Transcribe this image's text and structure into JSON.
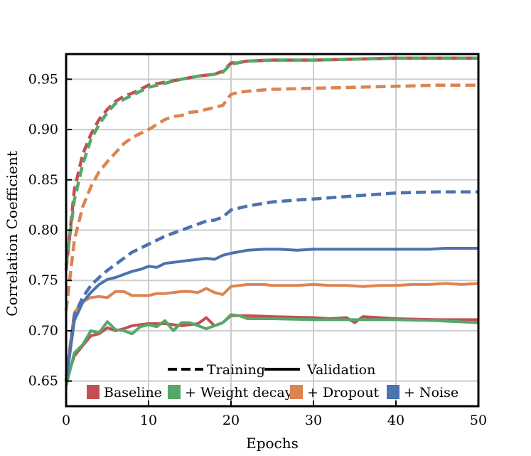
{
  "chart_data": {
    "type": "line",
    "title": "",
    "xlabel": "Epochs",
    "ylabel": "Correlation Coefficient",
    "xlim": [
      0,
      50
    ],
    "ylim": [
      0.625,
      0.975
    ],
    "xticks": [
      0,
      10,
      20,
      30,
      40,
      50
    ],
    "yticks": [
      0.65,
      0.7,
      0.75,
      0.8,
      0.85,
      0.9,
      0.95
    ],
    "ytick_labels": [
      "0.65",
      "0.70",
      "0.75",
      "0.80",
      "0.85",
      "0.90",
      "0.95"
    ],
    "grid": true,
    "style_legend": [
      {
        "label": "Training",
        "dash": "dashed"
      },
      {
        "label": "Validation",
        "dash": "solid"
      }
    ],
    "series": [
      {
        "name": "Baseline",
        "color": "#c44e52",
        "training": {
          "x": [
            0,
            1,
            2,
            3,
            4,
            5,
            6,
            7,
            8,
            9,
            10,
            12,
            14,
            16,
            18,
            19,
            20,
            22,
            25,
            30,
            35,
            40,
            45,
            50
          ],
          "y": [
            0.76,
            0.84,
            0.875,
            0.895,
            0.91,
            0.92,
            0.928,
            0.933,
            0.936,
            0.94,
            0.944,
            0.947,
            0.95,
            0.953,
            0.955,
            0.958,
            0.966,
            0.968,
            0.969,
            0.969,
            0.97,
            0.971,
            0.971,
            0.971
          ]
        },
        "validation": {
          "x": [
            0,
            1,
            2,
            3,
            4,
            5,
            6,
            7,
            8,
            10,
            12,
            14,
            16,
            17,
            18,
            19,
            20,
            22,
            25,
            30,
            32,
            34,
            35,
            36,
            38,
            40,
            45,
            50
          ],
          "y": [
            0.65,
            0.675,
            0.685,
            0.695,
            0.697,
            0.703,
            0.7,
            0.702,
            0.705,
            0.707,
            0.707,
            0.705,
            0.707,
            0.713,
            0.705,
            0.708,
            0.715,
            0.715,
            0.714,
            0.713,
            0.712,
            0.713,
            0.708,
            0.714,
            0.713,
            0.712,
            0.711,
            0.711
          ]
        }
      },
      {
        "name": "+ Weight decay",
        "color": "#55a868",
        "training": {
          "x": [
            0,
            1,
            2,
            3,
            4,
            5,
            6,
            7,
            8,
            9,
            10,
            12,
            14,
            16,
            18,
            19,
            20,
            22,
            25,
            30,
            35,
            40,
            45,
            50
          ],
          "y": [
            0.765,
            0.83,
            0.865,
            0.89,
            0.905,
            0.917,
            0.926,
            0.93,
            0.934,
            0.938,
            0.942,
            0.946,
            0.95,
            0.953,
            0.955,
            0.957,
            0.965,
            0.968,
            0.969,
            0.969,
            0.97,
            0.971,
            0.971,
            0.971
          ]
        },
        "validation": {
          "x": [
            0,
            1,
            2,
            3,
            4,
            5,
            6,
            7,
            8,
            9,
            10,
            11,
            12,
            13,
            14,
            15,
            16,
            17,
            18,
            19,
            20,
            21,
            22,
            25,
            30,
            35,
            40,
            45,
            50
          ],
          "y": [
            0.645,
            0.678,
            0.686,
            0.7,
            0.698,
            0.709,
            0.701,
            0.7,
            0.697,
            0.704,
            0.706,
            0.704,
            0.71,
            0.7,
            0.708,
            0.708,
            0.705,
            0.702,
            0.705,
            0.708,
            0.716,
            0.715,
            0.712,
            0.712,
            0.711,
            0.711,
            0.711,
            0.71,
            0.708
          ]
        }
      },
      {
        "name": "+ Dropout",
        "color": "#dd8452",
        "training": {
          "x": [
            0,
            1,
            2,
            3,
            4,
            5,
            6,
            7,
            8,
            9,
            10,
            11,
            12,
            13,
            14,
            15,
            16,
            17,
            18,
            19,
            20,
            21,
            22,
            25,
            30,
            35,
            40,
            45,
            50
          ],
          "y": [
            0.72,
            0.79,
            0.823,
            0.843,
            0.858,
            0.868,
            0.877,
            0.886,
            0.892,
            0.896,
            0.9,
            0.905,
            0.91,
            0.913,
            0.914,
            0.917,
            0.918,
            0.92,
            0.922,
            0.924,
            0.935,
            0.937,
            0.938,
            0.94,
            0.941,
            0.942,
            0.943,
            0.944,
            0.944
          ]
        },
        "validation": {
          "x": [
            0,
            1,
            2,
            3,
            4,
            5,
            6,
            7,
            8,
            9,
            10,
            11,
            12,
            13,
            14,
            15,
            16,
            17,
            18,
            19,
            20,
            22,
            24,
            25,
            26,
            28,
            30,
            32,
            34,
            36,
            38,
            40,
            42,
            44,
            46,
            48,
            50
          ],
          "y": [
            0.655,
            0.718,
            0.729,
            0.733,
            0.734,
            0.733,
            0.739,
            0.739,
            0.735,
            0.735,
            0.735,
            0.737,
            0.737,
            0.738,
            0.739,
            0.739,
            0.738,
            0.742,
            0.738,
            0.736,
            0.744,
            0.746,
            0.746,
            0.745,
            0.745,
            0.745,
            0.746,
            0.745,
            0.745,
            0.744,
            0.745,
            0.745,
            0.746,
            0.746,
            0.747,
            0.746,
            0.747
          ]
        }
      },
      {
        "name": "+ Noise",
        "color": "#4c72b0",
        "training": {
          "x": [
            0,
            1,
            2,
            3,
            4,
            5,
            6,
            7,
            8,
            9,
            10,
            12,
            14,
            16,
            17,
            18,
            19,
            20,
            22,
            25,
            28,
            30,
            35,
            40,
            45,
            50
          ],
          "y": [
            0.65,
            0.715,
            0.733,
            0.745,
            0.753,
            0.76,
            0.766,
            0.772,
            0.778,
            0.782,
            0.786,
            0.794,
            0.8,
            0.806,
            0.809,
            0.81,
            0.813,
            0.82,
            0.824,
            0.828,
            0.83,
            0.831,
            0.834,
            0.837,
            0.838,
            0.838
          ]
        },
        "validation": {
          "x": [
            0,
            1,
            2,
            3,
            4,
            5,
            6,
            7,
            8,
            9,
            10,
            11,
            12,
            13,
            14,
            15,
            16,
            17,
            18,
            19,
            20,
            22,
            24,
            26,
            28,
            30,
            32,
            34,
            36,
            38,
            40,
            42,
            44,
            46,
            48,
            50
          ],
          "y": [
            0.65,
            0.71,
            0.728,
            0.738,
            0.746,
            0.751,
            0.753,
            0.756,
            0.759,
            0.761,
            0.764,
            0.763,
            0.767,
            0.768,
            0.769,
            0.77,
            0.771,
            0.772,
            0.771,
            0.775,
            0.777,
            0.78,
            0.781,
            0.781,
            0.78,
            0.781,
            0.781,
            0.781,
            0.781,
            0.781,
            0.781,
            0.781,
            0.781,
            0.782,
            0.782,
            0.782
          ]
        }
      }
    ]
  }
}
